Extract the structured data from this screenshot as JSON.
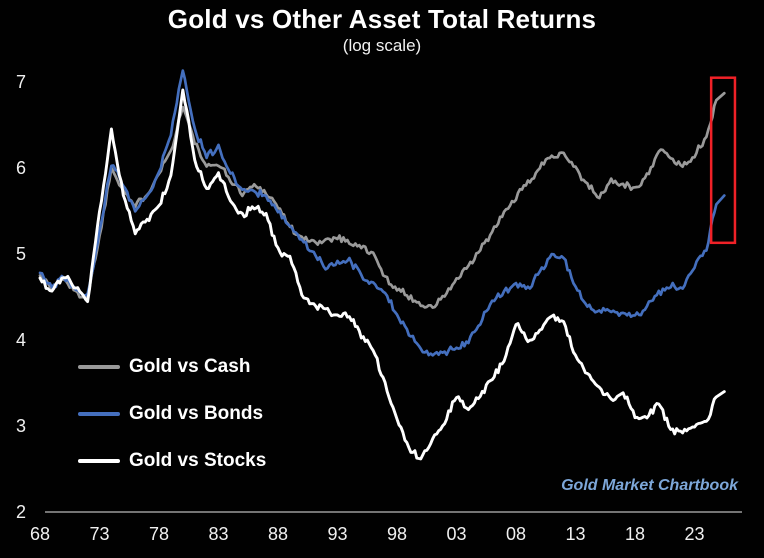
{
  "window": {
    "background": "#010101"
  },
  "header": {
    "title": "Gold vs Other Asset Total Returns",
    "subtitle": "(log scale)"
  },
  "branding": {
    "text": "Gold Market Chartbook",
    "color": "#7da7d9"
  },
  "chart_data": {
    "type": "line",
    "title": "Gold vs Other Asset Total Returns",
    "subtitle": "(log scale)",
    "y_scale": "log",
    "grid": false,
    "legend_position": "middle-left",
    "ylim": [
      2,
      7
    ],
    "y_ticks": [
      7,
      6,
      5,
      4,
      3,
      2
    ],
    "x_ticks": [
      {
        "label": "68",
        "year": 1968
      },
      {
        "label": "73",
        "year": 1973
      },
      {
        "label": "78",
        "year": 1978
      },
      {
        "label": "83",
        "year": 1983
      },
      {
        "label": "88",
        "year": 1988
      },
      {
        "label": "93",
        "year": 1993
      },
      {
        "label": "98",
        "year": 1998
      },
      {
        "label": "03",
        "year": 2003
      },
      {
        "label": "08",
        "year": 2008
      },
      {
        "label": "13",
        "year": 2013
      },
      {
        "label": "18",
        "year": 2018
      },
      {
        "label": "23",
        "year": 2023
      }
    ],
    "x_range_years": [
      1968,
      2025.5
    ],
    "years": [
      1968,
      1969,
      1970,
      1971,
      1972,
      1973,
      1974,
      1975,
      1976,
      1977,
      1978,
      1979,
      1980,
      1981,
      1982,
      1983,
      1984,
      1985,
      1986,
      1987,
      1988,
      1989,
      1990,
      1991,
      1992,
      1993,
      1994,
      1995,
      1996,
      1997,
      1998,
      1999,
      2000,
      2001,
      2002,
      2003,
      2004,
      2005,
      2006,
      2007,
      2008,
      2009,
      2010,
      2011,
      2012,
      2013,
      2014,
      2015,
      2016,
      2017,
      2018,
      2019,
      2020,
      2021,
      2022,
      2023,
      2024,
      2025
    ],
    "series": [
      {
        "name": "Gold vs Cash",
        "color": "#9a9a9a",
        "values": [
          4.75,
          4.6,
          4.72,
          4.55,
          4.5,
          5.2,
          6.0,
          5.75,
          5.55,
          5.7,
          5.95,
          6.2,
          6.72,
          6.3,
          6.0,
          6.05,
          5.86,
          5.7,
          5.8,
          5.72,
          5.55,
          5.32,
          5.18,
          5.14,
          5.16,
          5.2,
          5.14,
          5.08,
          5.0,
          4.72,
          4.6,
          4.5,
          4.42,
          4.38,
          4.52,
          4.7,
          4.85,
          5.05,
          5.25,
          5.48,
          5.65,
          5.83,
          6.0,
          6.15,
          6.18,
          6.0,
          5.8,
          5.65,
          5.86,
          5.8,
          5.76,
          5.92,
          6.2,
          6.12,
          6.02,
          6.15,
          6.35,
          6.87
        ]
      },
      {
        "name": "Gold vs Bonds",
        "color": "#446fbe",
        "values": [
          4.78,
          4.62,
          4.75,
          4.58,
          4.52,
          5.25,
          6.05,
          5.8,
          5.52,
          5.68,
          5.95,
          6.4,
          7.15,
          6.45,
          6.13,
          6.25,
          5.94,
          5.76,
          5.72,
          5.68,
          5.5,
          5.31,
          5.15,
          5.0,
          4.84,
          4.9,
          4.93,
          4.76,
          4.65,
          4.55,
          4.3,
          4.08,
          3.9,
          3.82,
          3.86,
          3.9,
          3.98,
          4.2,
          4.45,
          4.55,
          4.65,
          4.6,
          4.8,
          5.0,
          4.95,
          4.6,
          4.4,
          4.32,
          4.35,
          4.3,
          4.28,
          4.38,
          4.55,
          4.63,
          4.6,
          4.85,
          5.06,
          5.68
        ]
      },
      {
        "name": "Gold vs Stocks",
        "color": "#ffffff",
        "values": [
          4.72,
          4.55,
          4.75,
          4.6,
          4.45,
          5.5,
          6.44,
          5.7,
          5.25,
          5.4,
          5.55,
          5.9,
          6.9,
          6.1,
          5.75,
          5.95,
          5.6,
          5.45,
          5.55,
          5.45,
          5.05,
          4.95,
          4.55,
          4.4,
          4.35,
          4.3,
          4.28,
          4.05,
          3.88,
          3.5,
          3.1,
          2.75,
          2.6,
          2.85,
          3.05,
          3.35,
          3.2,
          3.35,
          3.55,
          3.76,
          4.2,
          4.0,
          4.1,
          4.3,
          4.22,
          3.8,
          3.6,
          3.45,
          3.3,
          3.38,
          3.12,
          3.1,
          3.28,
          2.95,
          2.92,
          3.0,
          3.05,
          3.4
        ]
      }
    ],
    "annotations": {
      "highlight_box": {
        "description": "red rectangle highlighting recent surge of Gold vs Cash and Gold vs Bonds",
        "color": "#f02127",
        "x1_year": 2024.4,
        "x2_year": 2026.4,
        "y1_value": 5.13,
        "y2_value": 7.05
      }
    }
  }
}
